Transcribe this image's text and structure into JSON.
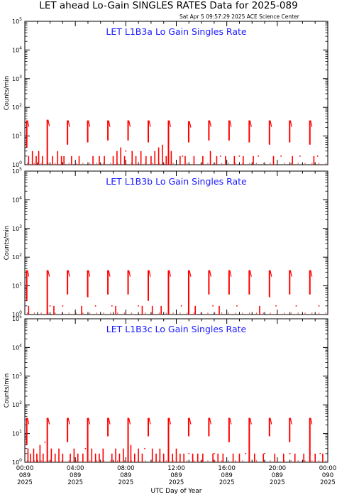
{
  "header": {
    "title": "LET ahead Lo-Gain SINGLES RATES Data for 2025-089",
    "timestamp": "Sat Apr  5 09:57:29 2025 ACE Science Center"
  },
  "colors": {
    "data": "#ff0000",
    "panel_title": "#1a1aff",
    "axis": "#000000"
  },
  "chart_data": [
    {
      "type": "line",
      "title": "LET L1B3a Lo Gain Singles Rate",
      "ylabel": "Counts/min",
      "yscale": "log",
      "ylim": [
        1,
        100000
      ],
      "xlim": [
        0,
        24
      ],
      "xlabel": "UTC Day of Year",
      "x_ticks": [
        {
          "h": 0,
          "time": "00:00",
          "doy": "089",
          "year": "2025"
        },
        {
          "h": 4,
          "time": "04:00",
          "doy": "089",
          "year": "2025"
        },
        {
          "h": 8,
          "time": "08:00",
          "doy": "089",
          "year": "2025"
        },
        {
          "h": 12,
          "time": "12:00",
          "doy": "089",
          "year": "2025"
        },
        {
          "h": 16,
          "time": "16:00",
          "doy": "089",
          "year": "2025"
        },
        {
          "h": 20,
          "time": "20:00",
          "doy": "089",
          "year": "2025"
        },
        {
          "h": 24,
          "time": "00:00",
          "doy": "090",
          "year": "2025"
        }
      ],
      "spikes": [
        {
          "x": 0.15,
          "peak": 35,
          "low": 4
        },
        {
          "x": 1.78,
          "peak": 37,
          "low": 1
        },
        {
          "x": 3.38,
          "peak": 35,
          "low": 5
        },
        {
          "x": 4.98,
          "peak": 35,
          "low": 6
        },
        {
          "x": 6.58,
          "peak": 35,
          "low": 7
        },
        {
          "x": 8.18,
          "peak": 35,
          "low": 7
        },
        {
          "x": 9.78,
          "peak": 35,
          "low": 6
        },
        {
          "x": 11.38,
          "peak": 35,
          "low": 1
        },
        {
          "x": 12.98,
          "peak": 33,
          "low": 6
        },
        {
          "x": 14.58,
          "peak": 35,
          "low": 7
        },
        {
          "x": 16.18,
          "peak": 35,
          "low": 7
        },
        {
          "x": 17.78,
          "peak": 35,
          "low": 6
        },
        {
          "x": 19.38,
          "peak": 35,
          "low": 5
        },
        {
          "x": 20.98,
          "peak": 35,
          "low": 6
        },
        {
          "x": 22.58,
          "peak": 35,
          "low": 5
        }
      ],
      "baseline_bars": [
        {
          "x": 0.3,
          "v": 2
        },
        {
          "x": 0.6,
          "v": 3
        },
        {
          "x": 0.9,
          "v": 2
        },
        {
          "x": 1.1,
          "v": 3
        },
        {
          "x": 1.4,
          "v": 2
        },
        {
          "x": 2.2,
          "v": 2
        },
        {
          "x": 2.6,
          "v": 3
        },
        {
          "x": 2.9,
          "v": 2
        },
        {
          "x": 3.1,
          "v": 2
        },
        {
          "x": 3.7,
          "v": 2
        },
        {
          "x": 4.3,
          "v": 2
        },
        {
          "x": 5.4,
          "v": 2
        },
        {
          "x": 5.9,
          "v": 2
        },
        {
          "x": 6.3,
          "v": 2
        },
        {
          "x": 7.0,
          "v": 2
        },
        {
          "x": 7.3,
          "v": 3
        },
        {
          "x": 7.6,
          "v": 4
        },
        {
          "x": 7.9,
          "v": 2
        },
        {
          "x": 8.5,
          "v": 3
        },
        {
          "x": 8.8,
          "v": 2
        },
        {
          "x": 9.2,
          "v": 3
        },
        {
          "x": 9.6,
          "v": 2
        },
        {
          "x": 10.0,
          "v": 2
        },
        {
          "x": 10.3,
          "v": 3
        },
        {
          "x": 10.6,
          "v": 4
        },
        {
          "x": 10.9,
          "v": 5
        },
        {
          "x": 11.2,
          "v": 2
        },
        {
          "x": 11.6,
          "v": 3
        },
        {
          "x": 12.3,
          "v": 2
        },
        {
          "x": 12.7,
          "v": 2
        },
        {
          "x": 13.4,
          "v": 2
        },
        {
          "x": 14.1,
          "v": 2
        },
        {
          "x": 14.7,
          "v": 3
        },
        {
          "x": 15.2,
          "v": 2
        },
        {
          "x": 15.9,
          "v": 2
        },
        {
          "x": 16.6,
          "v": 2
        },
        {
          "x": 17.3,
          "v": 2
        },
        {
          "x": 18.1,
          "v": 2
        },
        {
          "x": 19.7,
          "v": 2
        },
        {
          "x": 21.2,
          "v": 2
        },
        {
          "x": 22.9,
          "v": 2
        }
      ],
      "scatter_points": [
        {
          "x": 8.0,
          "y": 3
        },
        {
          "x": 12.5,
          "y": 2
        },
        {
          "x": 15.5,
          "y": 2
        },
        {
          "x": 17.0,
          "y": 2
        },
        {
          "x": 18.5,
          "y": 2
        },
        {
          "x": 20.3,
          "y": 2
        },
        {
          "x": 21.8,
          "y": 2
        },
        {
          "x": 23.2,
          "y": 2
        }
      ]
    },
    {
      "type": "line",
      "title": "LET L1B3b Lo Gain Singles Rate",
      "ylabel": "Counts/min",
      "yscale": "log",
      "ylim": [
        1,
        100000
      ],
      "xlim": [
        0,
        24
      ],
      "spikes": [
        {
          "x": 0.15,
          "peak": 35,
          "low": 3
        },
        {
          "x": 1.78,
          "peak": 35,
          "low": 1
        },
        {
          "x": 3.38,
          "peak": 35,
          "low": 5
        },
        {
          "x": 4.98,
          "peak": 35,
          "low": 4
        },
        {
          "x": 6.58,
          "peak": 35,
          "low": 5
        },
        {
          "x": 8.18,
          "peak": 35,
          "low": 5
        },
        {
          "x": 9.78,
          "peak": 35,
          "low": 3
        },
        {
          "x": 11.38,
          "peak": 35,
          "low": 1
        },
        {
          "x": 12.98,
          "peak": 35,
          "low": 1
        },
        {
          "x": 14.58,
          "peak": 35,
          "low": 5
        },
        {
          "x": 16.18,
          "peak": 35,
          "low": 5
        },
        {
          "x": 17.78,
          "peak": 35,
          "low": 5
        },
        {
          "x": 19.38,
          "peak": 35,
          "low": 4
        },
        {
          "x": 20.98,
          "peak": 35,
          "low": 5
        },
        {
          "x": 22.58,
          "peak": 35,
          "low": 5
        }
      ],
      "baseline_bars": [
        {
          "x": 0.3,
          "v": 2
        },
        {
          "x": 2.3,
          "v": 2
        },
        {
          "x": 4.5,
          "v": 2
        },
        {
          "x": 7.2,
          "v": 2
        },
        {
          "x": 9.3,
          "v": 2
        },
        {
          "x": 10.1,
          "v": 2
        },
        {
          "x": 10.8,
          "v": 2
        },
        {
          "x": 13.5,
          "v": 2
        },
        {
          "x": 15.4,
          "v": 2
        },
        {
          "x": 18.6,
          "v": 2
        }
      ],
      "scatter_points": [
        {
          "x": 2.0,
          "y": 2
        },
        {
          "x": 3.0,
          "y": 2
        },
        {
          "x": 5.6,
          "y": 2
        },
        {
          "x": 6.9,
          "y": 2
        },
        {
          "x": 9.0,
          "y": 2
        },
        {
          "x": 12.4,
          "y": 2
        },
        {
          "x": 14.9,
          "y": 2
        },
        {
          "x": 16.8,
          "y": 2
        },
        {
          "x": 19.9,
          "y": 2
        },
        {
          "x": 21.5,
          "y": 2
        },
        {
          "x": 23.3,
          "y": 2
        }
      ]
    },
    {
      "type": "line",
      "title": "LET L1B3c Lo Gain Singles Rate",
      "ylabel": "Counts/min",
      "yscale": "log",
      "ylim": [
        1,
        100000
      ],
      "xlim": [
        0,
        24
      ],
      "spikes": [
        {
          "x": 0.15,
          "peak": 35,
          "low": 4
        },
        {
          "x": 1.78,
          "peak": 35,
          "low": 1
        },
        {
          "x": 3.38,
          "peak": 35,
          "low": 5
        },
        {
          "x": 4.98,
          "peak": 35,
          "low": 1
        },
        {
          "x": 6.58,
          "peak": 35,
          "low": 8
        },
        {
          "x": 8.18,
          "peak": 35,
          "low": 1
        },
        {
          "x": 9.78,
          "peak": 35,
          "low": 8
        },
        {
          "x": 11.38,
          "peak": 35,
          "low": 1
        },
        {
          "x": 12.98,
          "peak": 35,
          "low": 8
        },
        {
          "x": 14.58,
          "peak": 35,
          "low": 8
        },
        {
          "x": 16.18,
          "peak": 35,
          "low": 5
        },
        {
          "x": 17.78,
          "peak": 35,
          "low": 1
        },
        {
          "x": 19.38,
          "peak": 35,
          "low": 8
        },
        {
          "x": 20.98,
          "peak": 35,
          "low": 5
        },
        {
          "x": 22.58,
          "peak": 35,
          "low": 1
        }
      ],
      "baseline_bars": [
        {
          "x": 0.25,
          "v": 3
        },
        {
          "x": 0.45,
          "v": 2
        },
        {
          "x": 0.7,
          "v": 3
        },
        {
          "x": 0.95,
          "v": 2
        },
        {
          "x": 1.2,
          "v": 4
        },
        {
          "x": 1.45,
          "v": 2
        },
        {
          "x": 2.1,
          "v": 3
        },
        {
          "x": 2.4,
          "v": 2
        },
        {
          "x": 2.7,
          "v": 3
        },
        {
          "x": 3.0,
          "v": 2
        },
        {
          "x": 3.6,
          "v": 2
        },
        {
          "x": 3.9,
          "v": 3
        },
        {
          "x": 4.2,
          "v": 2
        },
        {
          "x": 4.6,
          "v": 2
        },
        {
          "x": 5.3,
          "v": 3
        },
        {
          "x": 5.6,
          "v": 2
        },
        {
          "x": 5.9,
          "v": 2
        },
        {
          "x": 6.2,
          "v": 3
        },
        {
          "x": 6.9,
          "v": 2
        },
        {
          "x": 7.2,
          "v": 3
        },
        {
          "x": 7.5,
          "v": 2
        },
        {
          "x": 7.8,
          "v": 3
        },
        {
          "x": 8.4,
          "v": 4
        },
        {
          "x": 8.7,
          "v": 2
        },
        {
          "x": 9.0,
          "v": 3
        },
        {
          "x": 9.3,
          "v": 2
        },
        {
          "x": 10.1,
          "v": 3
        },
        {
          "x": 10.4,
          "v": 2
        },
        {
          "x": 10.7,
          "v": 3
        },
        {
          "x": 11.0,
          "v": 2
        },
        {
          "x": 11.7,
          "v": 2
        },
        {
          "x": 12.0,
          "v": 3
        },
        {
          "x": 12.3,
          "v": 2
        },
        {
          "x": 12.6,
          "v": 2
        },
        {
          "x": 13.3,
          "v": 2
        },
        {
          "x": 13.7,
          "v": 2
        },
        {
          "x": 14.1,
          "v": 2
        },
        {
          "x": 14.9,
          "v": 2
        },
        {
          "x": 15.3,
          "v": 2
        },
        {
          "x": 15.7,
          "v": 2
        },
        {
          "x": 16.5,
          "v": 2
        },
        {
          "x": 17.0,
          "v": 2
        },
        {
          "x": 18.2,
          "v": 2
        },
        {
          "x": 18.9,
          "v": 2
        },
        {
          "x": 19.8,
          "v": 2
        },
        {
          "x": 20.5,
          "v": 2
        },
        {
          "x": 21.4,
          "v": 2
        },
        {
          "x": 22.1,
          "v": 2
        },
        {
          "x": 23.0,
          "v": 2
        },
        {
          "x": 23.6,
          "v": 2
        }
      ],
      "scatter_points": [
        {
          "x": 1.6,
          "y": 5
        },
        {
          "x": 4.8,
          "y": 3
        },
        {
          "x": 9.5,
          "y": 3
        },
        {
          "x": 13.0,
          "y": 2
        },
        {
          "x": 15.0,
          "y": 2
        },
        {
          "x": 17.5,
          "y": 2
        },
        {
          "x": 19.0,
          "y": 2
        },
        {
          "x": 21.0,
          "y": 2
        },
        {
          "x": 22.6,
          "y": 2
        },
        {
          "x": 23.4,
          "y": 2
        }
      ]
    }
  ]
}
